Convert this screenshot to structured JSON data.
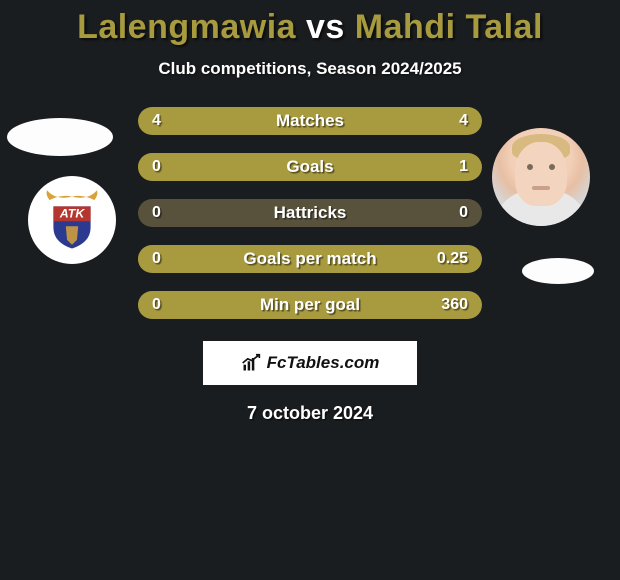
{
  "title": {
    "text_a": "Lalengmawia",
    "vs": " vs ",
    "text_b": "Mahdi Talal",
    "color_a": "#a89a3e",
    "color_vs": "#ffffff",
    "color_b": "#a89a3e",
    "fontsize": 34
  },
  "subtitle": "Club competitions, Season 2024/2025",
  "stats": {
    "bar_bg_color": "#58523c",
    "fill_color": "#a89a3e",
    "rows": [
      {
        "label": "Matches",
        "left": "4",
        "right": "4",
        "left_pct": 50,
        "right_pct": 50
      },
      {
        "label": "Goals",
        "left": "0",
        "right": "1",
        "left_pct": 0,
        "right_pct": 100
      },
      {
        "label": "Hattricks",
        "left": "0",
        "right": "0",
        "left_pct": 0,
        "right_pct": 0
      },
      {
        "label": "Goals per match",
        "left": "0",
        "right": "0.25",
        "left_pct": 0,
        "right_pct": 100
      },
      {
        "label": "Min per goal",
        "left": "0",
        "right": "360",
        "left_pct": 0,
        "right_pct": 100
      }
    ]
  },
  "brand": {
    "text": "FcTables.com",
    "box_bg": "#ffffff",
    "icon_color": "#111111"
  },
  "date": "7 october 2024",
  "background_color": "#1a1d1f",
  "avatars": {
    "left_placeholder_color": "#fdfdfd",
    "right_placeholder_color": "#fdfdfd",
    "club_badge": {
      "shield_top": "#b4362f",
      "shield_bottom": "#2b3a8f",
      "wing_color": "#d9a33a",
      "text": "ATK",
      "text_color": "#ffffff"
    }
  }
}
